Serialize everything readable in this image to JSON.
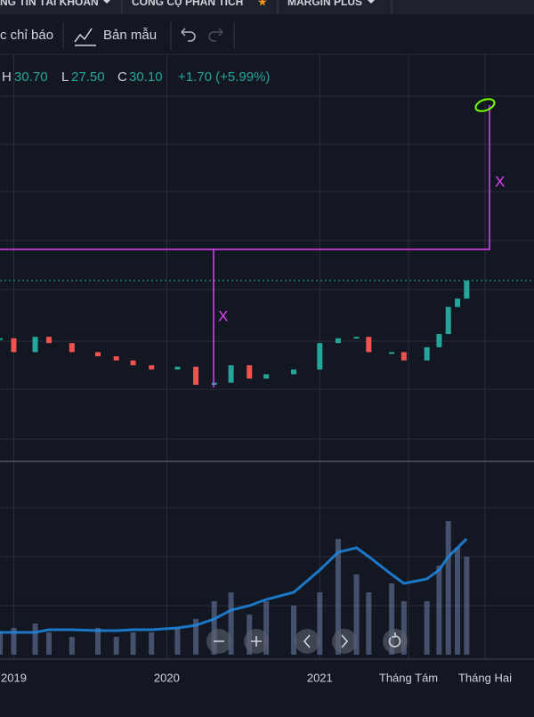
{
  "menu": [
    "NG TIN TÀI KHOẢN",
    "CÔNG CỤ PHÂN TÍCH",
    "MARGIN PLUS"
  ],
  "toolbar": {
    "indicators": "c chỉ báo",
    "templates": "Bản mẫu"
  },
  "legend": {
    "h_label": "H",
    "h": "30.70",
    "l_label": "L",
    "l": "27.50",
    "c_label": "C",
    "c": "30.10",
    "change": "+1.70 (+5.99%)"
  },
  "annotations": [
    "X",
    "X"
  ],
  "chart_data": {
    "type": "candlestick",
    "x": [
      2018.91,
      2019.0,
      2019.14,
      2019.23,
      2019.38,
      2019.55,
      2019.67,
      2019.78,
      2019.9,
      2020.07,
      2020.19,
      2020.31,
      2020.42,
      2020.54,
      2020.65,
      2020.83,
      2021.0,
      2021.12,
      2021.24,
      2021.32,
      2021.47,
      2021.55,
      2021.7,
      2021.78,
      2021.84,
      2021.9,
      2021.96
    ],
    "series": [
      {
        "name": "Close",
        "up_color": "#26a69a",
        "down_color": "#ef5350",
        "values": [
          21.8,
          19.8,
          22.0,
          21.1,
          19.8,
          19.2,
          18.6,
          17.9,
          17.3,
          17.7,
          15.1,
          15.4,
          17.9,
          16.0,
          16.6,
          17.3,
          21.1,
          21.8,
          22.0,
          19.8,
          19.8,
          18.6,
          20.5,
          22.4,
          26.3,
          27.5,
          30.1
        ]
      },
      {
        "name": "Volume",
        "axis": "y2",
        "color": "#5b6b8c",
        "values": [
          25,
          30,
          35,
          25,
          20,
          30,
          20,
          25,
          25,
          30,
          40,
          60,
          70,
          45,
          60,
          55,
          70,
          130,
          90,
          70,
          80,
          60,
          60,
          100,
          150,
          120,
          110
        ]
      },
      {
        "name": "Volume MA",
        "axis": "y2",
        "color": "#1e88e5",
        "values": [
          25,
          25,
          25,
          28,
          28,
          27,
          27,
          28,
          28,
          30,
          33,
          40,
          50,
          55,
          62,
          70,
          95,
          115,
          120,
          110,
          90,
          80,
          85,
          95,
          110,
          120,
          130
        ]
      }
    ],
    "xlim": [
      2018.91,
      2022.4
    ],
    "xticks": [
      2019,
      2020,
      2021,
      {
        "value": 2021.58,
        "label": "Tháng Tám"
      },
      {
        "value": 2022.08,
        "label": "Tháng Hai"
      }
    ],
    "ylim": [
      4.46,
      58.3
    ],
    "y2lim": [
      0,
      215
    ]
  }
}
